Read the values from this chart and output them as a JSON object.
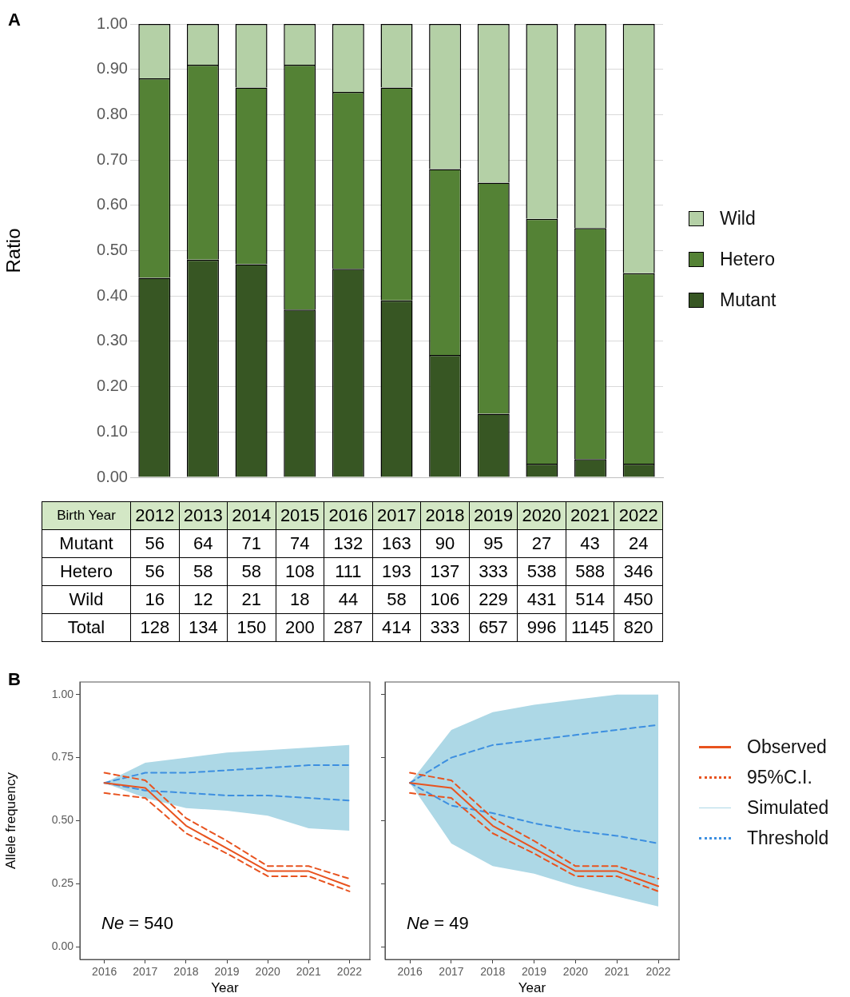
{
  "chart_data": [
    {
      "type": "bar",
      "title": "A",
      "ylabel": "Ratio",
      "categories": [
        "2012",
        "2013",
        "2014",
        "2015",
        "2016",
        "2017",
        "2018",
        "2019",
        "2020",
        "2021",
        "2022"
      ],
      "stacked": true,
      "series": [
        {
          "name": "Mutant",
          "color": "#375623",
          "values": [
            0.44,
            0.48,
            0.47,
            0.37,
            0.46,
            0.39,
            0.27,
            0.14,
            0.03,
            0.04,
            0.03
          ]
        },
        {
          "name": "Hetero",
          "color": "#548235",
          "values": [
            0.44,
            0.43,
            0.39,
            0.54,
            0.39,
            0.47,
            0.41,
            0.51,
            0.54,
            0.51,
            0.42
          ]
        },
        {
          "name": "Wild",
          "color": "#b4d0a6",
          "values": [
            0.12,
            0.09,
            0.14,
            0.09,
            0.15,
            0.14,
            0.32,
            0.35,
            0.43,
            0.45,
            0.55
          ]
        }
      ],
      "ylim": [
        0,
        1
      ],
      "yticks": [
        {
          "value": 0,
          "label": "0.00"
        },
        {
          "value": 0.1,
          "label": "0.10"
        },
        {
          "value": 0.2,
          "label": "0.20"
        },
        {
          "value": 0.3,
          "label": "0.30"
        },
        {
          "value": 0.4,
          "label": "0.40"
        },
        {
          "value": 0.5,
          "label": "0.50"
        },
        {
          "value": 0.6,
          "label": "0.60"
        },
        {
          "value": 0.7,
          "label": "0.70"
        },
        {
          "value": 0.8,
          "label": "0.80"
        },
        {
          "value": 0.9,
          "label": "0.90"
        },
        {
          "value": 1,
          "label": "1.00"
        }
      ],
      "grid": "y",
      "legend": "right",
      "tick_labels": "y"
    },
    {
      "type": "heatmap",
      "xlabel": "Birth Year",
      "categories": [
        "2012",
        "2013",
        "2014",
        "2015",
        "2016",
        "2017",
        "2018",
        "2019",
        "2020",
        "2021",
        "2022"
      ],
      "y_categories": [
        "Mutant",
        "Hetero",
        "Wild",
        "Total"
      ],
      "cells": [
        [
          56,
          64,
          71,
          74,
          132,
          163,
          90,
          95,
          27,
          43,
          24
        ],
        [
          56,
          58,
          58,
          108,
          111,
          193,
          137,
          333,
          538,
          588,
          346
        ],
        [
          16,
          12,
          21,
          18,
          44,
          58,
          106,
          229,
          431,
          514,
          450
        ],
        [
          128,
          134,
          150,
          200,
          287,
          414,
          333,
          657,
          996,
          1145,
          820
        ]
      ],
      "data_labels": true
    },
    {
      "type": "line",
      "title": "B",
      "xlabel": "Year",
      "ylabel": "Allele frequency",
      "x": [
        2016,
        2017,
        2018,
        2019,
        2020,
        2021,
        2022
      ],
      "series": [
        {
          "color": "#e8531f",
          "values": [
            0.65,
            0.63,
            0.48,
            0.39,
            0.3,
            0.3,
            0.24
          ]
        },
        {
          "color": "#e8531f",
          "line_style": "dashed",
          "values": [
            0.69,
            0.66,
            0.51,
            0.42,
            0.32,
            0.32,
            0.27
          ]
        },
        {
          "color": "#e8531f",
          "line_style": "dashed",
          "values": [
            0.61,
            0.59,
            0.45,
            0.37,
            0.28,
            0.28,
            0.22
          ]
        },
        {
          "color": "#add8e6",
          "values": [
            null,
            null,
            null,
            null,
            null,
            null,
            null
          ],
          "lower": [
            0.65,
            0.59,
            0.55,
            0.54,
            0.52,
            0.47,
            0.46
          ],
          "upper": [
            0.65,
            0.73,
            0.75,
            0.77,
            0.78,
            0.79,
            0.8
          ]
        },
        {
          "color": "#3d8fe0",
          "line_style": "dashed",
          "values": [
            0.65,
            0.69,
            0.69,
            0.7,
            0.71,
            0.72,
            0.72
          ]
        },
        {
          "color": "#3d8fe0",
          "line_style": "dashed",
          "values": [
            0.65,
            0.62,
            0.61,
            0.6,
            0.6,
            0.59,
            0.58
          ]
        }
      ],
      "annotations": [
        "Ne = 540"
      ],
      "xlim": [
        2015.4,
        2022.5
      ],
      "xticks": [
        2016,
        2017,
        2018,
        2019,
        2020,
        2021,
        2022
      ],
      "ylim": [
        -0.05,
        1.05
      ],
      "yticks": [
        {
          "value": 0,
          "label": "0.00"
        },
        {
          "value": 0.25,
          "label": "0.25"
        },
        {
          "value": 0.5,
          "label": "0.50"
        },
        {
          "value": 0.75,
          "label": "0.75"
        },
        {
          "value": 1,
          "label": "1.00"
        }
      ]
    },
    {
      "type": "line",
      "xlabel": "Year",
      "x": [
        2016,
        2017,
        2018,
        2019,
        2020,
        2021,
        2022
      ],
      "series": [
        {
          "name": "Observed",
          "color": "#e8531f",
          "values": [
            0.65,
            0.63,
            0.48,
            0.39,
            0.3,
            0.3,
            0.24
          ]
        },
        {
          "name": "95%C.I.",
          "color": "#e8531f",
          "line_style": "dashed",
          "values": [
            0.69,
            0.66,
            0.51,
            0.42,
            0.32,
            0.32,
            0.27
          ]
        },
        {
          "color": "#e8531f",
          "line_style": "dashed",
          "values": [
            0.61,
            0.59,
            0.45,
            0.37,
            0.28,
            0.28,
            0.22
          ]
        },
        {
          "name": "Simulated",
          "color": "#add8e6",
          "values": [
            null,
            null,
            null,
            null,
            null,
            null,
            null
          ],
          "lower": [
            0.65,
            0.41,
            0.32,
            0.29,
            0.24,
            0.2,
            0.16
          ],
          "upper": [
            0.65,
            0.86,
            0.93,
            0.96,
            0.98,
            1.0,
            1.0
          ]
        },
        {
          "name": "Threshold",
          "color": "#3d8fe0",
          "line_style": "dashed",
          "values": [
            0.65,
            0.75,
            0.8,
            0.82,
            0.84,
            0.86,
            0.88
          ]
        },
        {
          "color": "#3d8fe0",
          "line_style": "dashed",
          "values": [
            0.65,
            0.56,
            0.53,
            0.49,
            0.46,
            0.44,
            0.41
          ]
        }
      ],
      "annotations": [
        "Ne = 49"
      ],
      "xlim": [
        2015.4,
        2022.5
      ],
      "xticks": [
        2016,
        2017,
        2018,
        2019,
        2020,
        2021,
        2022
      ],
      "ylim": [
        -0.05,
        1.05
      ],
      "yticks": [
        {
          "value": 0,
          "label": null
        },
        {
          "value": 0.25,
          "label": null
        },
        {
          "value": 0.5,
          "label": null
        },
        {
          "value": 0.75,
          "label": null
        },
        {
          "value": 1,
          "label": null
        }
      ],
      "tick_labels": "x",
      "legend": "right"
    }
  ]
}
